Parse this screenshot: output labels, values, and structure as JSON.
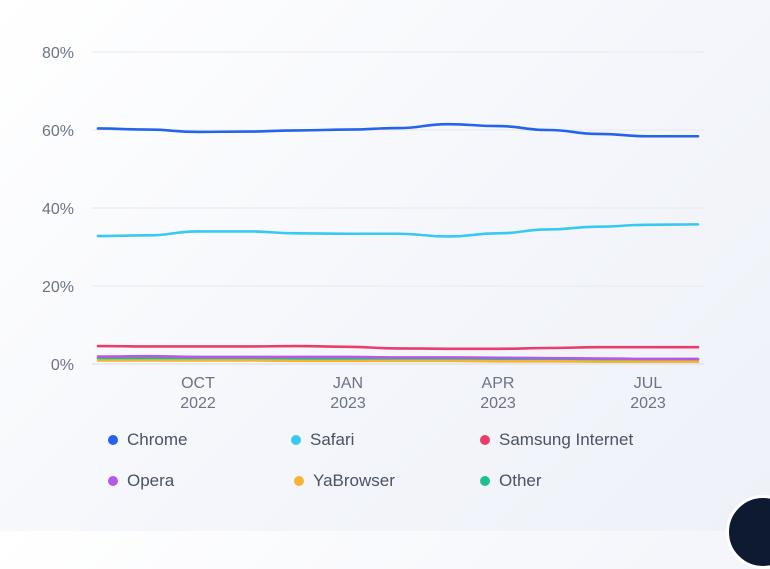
{
  "chart_data": {
    "type": "line",
    "x": [
      "2022-08",
      "2022-09",
      "2022-10",
      "2022-11",
      "2022-12",
      "2023-01",
      "2023-02",
      "2023-03",
      "2023-04",
      "2023-05",
      "2023-06",
      "2023-07",
      "2023-08"
    ],
    "xticks": [
      {
        "x": "2022-10",
        "line1": "OCT",
        "line2": "2022"
      },
      {
        "x": "2023-01",
        "line1": "JAN",
        "line2": "2023"
      },
      {
        "x": "2023-04",
        "line1": "APR",
        "line2": "2023"
      },
      {
        "x": "2023-07",
        "line1": "JUL",
        "line2": "2023"
      }
    ],
    "yticks": [
      "0%",
      "20%",
      "40%",
      "60%",
      "80%"
    ],
    "ylim": [
      0,
      80
    ],
    "grid": true,
    "legend_position": "bottom",
    "series": [
      {
        "name": "Chrome",
        "color": "#2563eb",
        "values": [
          60.4,
          60.1,
          59.5,
          59.6,
          59.9,
          60.1,
          60.5,
          61.5,
          61.0,
          60.0,
          59.0,
          58.4,
          58.4
        ]
      },
      {
        "name": "Safari",
        "color": "#38c9f0",
        "values": [
          32.8,
          33.0,
          34.0,
          34.0,
          33.5,
          33.4,
          33.4,
          32.7,
          33.5,
          34.5,
          35.2,
          35.7,
          35.8
        ]
      },
      {
        "name": "Samsung Internet",
        "color": "#ea3d6c",
        "values": [
          4.6,
          4.5,
          4.5,
          4.5,
          4.6,
          4.4,
          4.0,
          3.9,
          3.9,
          4.1,
          4.3,
          4.3,
          4.3
        ]
      },
      {
        "name": "Opera",
        "color": "#b45ae6",
        "values": [
          1.9,
          2.0,
          1.8,
          1.8,
          1.8,
          1.8,
          1.7,
          1.7,
          1.6,
          1.5,
          1.4,
          1.3,
          1.3
        ]
      },
      {
        "name": "YaBrowser",
        "color": "#f5b534",
        "values": [
          0.9,
          0.9,
          0.9,
          0.9,
          0.8,
          0.8,
          0.8,
          0.8,
          0.7,
          0.7,
          0.6,
          0.6,
          0.6
        ]
      },
      {
        "name": "Other",
        "color": "#1fbf8f",
        "values": [
          1.5,
          1.4,
          1.3,
          1.3,
          1.3,
          1.3,
          1.2,
          1.2,
          1.2,
          1.2,
          1.2,
          1.2,
          1.2
        ]
      }
    ]
  },
  "legend": {
    "items": [
      {
        "label": "Chrome",
        "color": "#2563eb"
      },
      {
        "label": "Safari",
        "color": "#38c9f0"
      },
      {
        "label": "Samsung Internet",
        "color": "#ea3d6c"
      },
      {
        "label": "Opera",
        "color": "#b45ae6"
      },
      {
        "label": "YaBrowser",
        "color": "#f5b534"
      },
      {
        "label": "Other",
        "color": "#1fbf8f"
      }
    ]
  }
}
